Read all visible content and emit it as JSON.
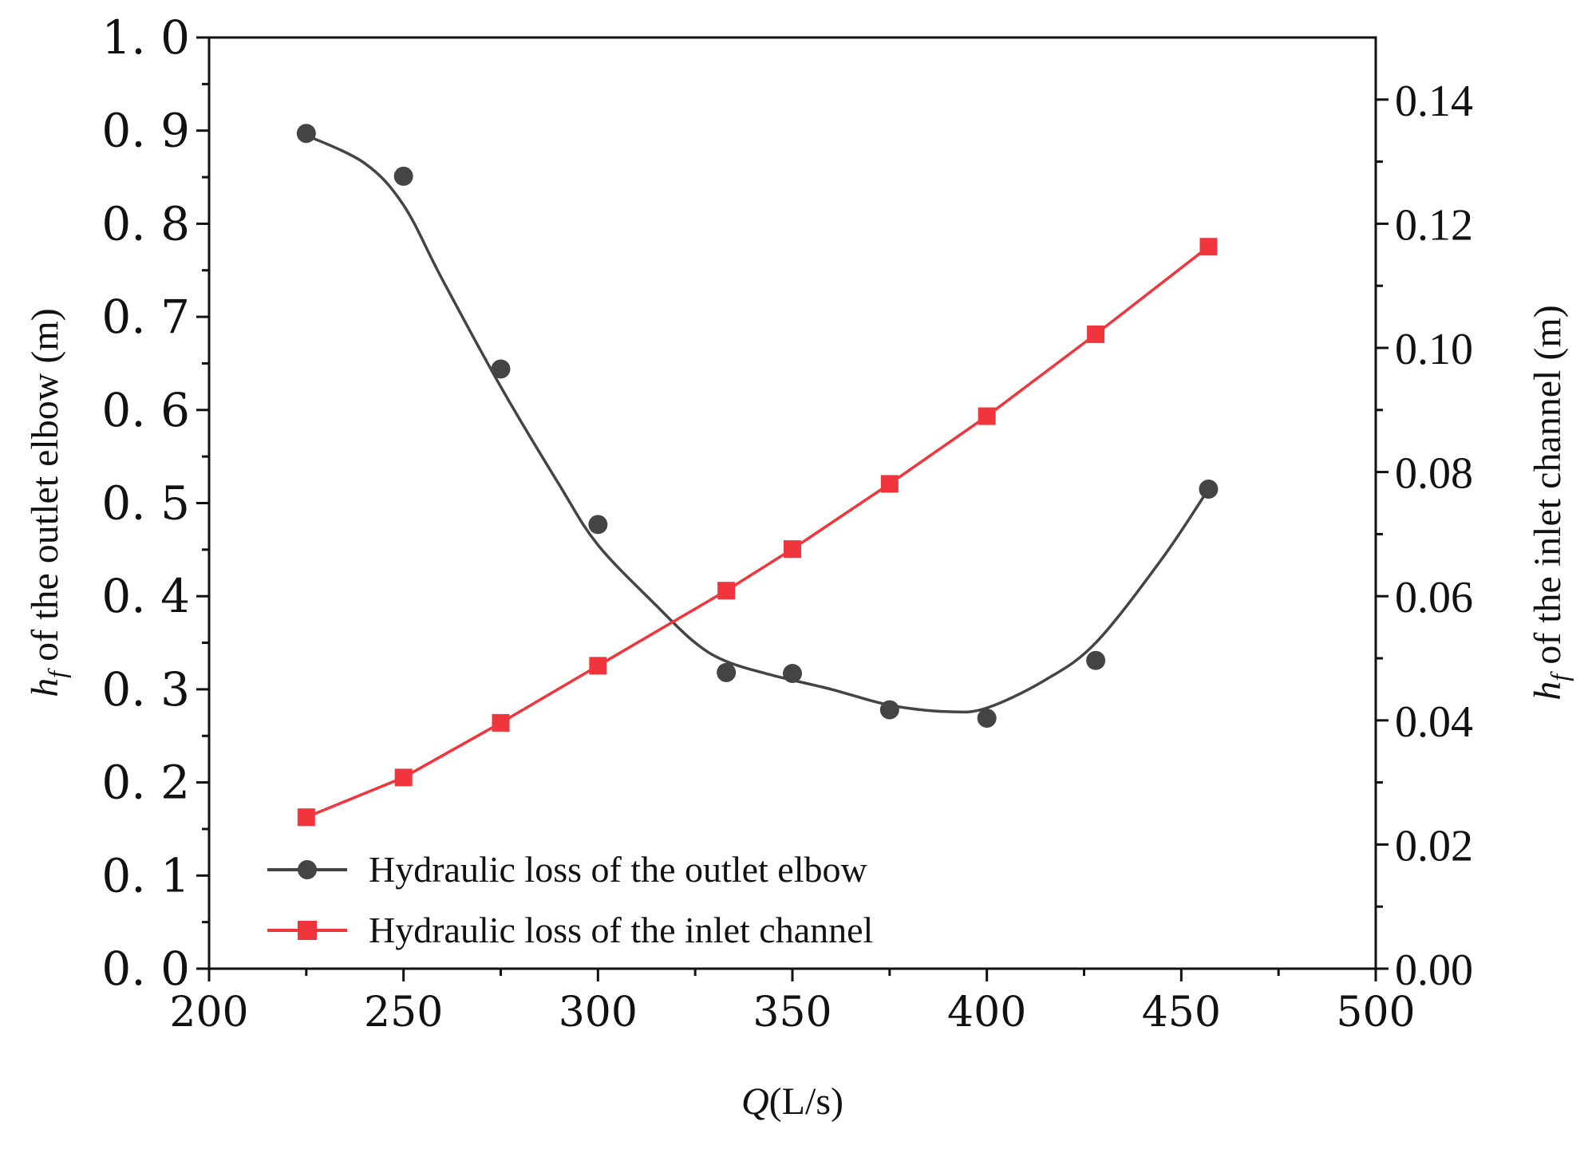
{
  "chart_data": {
    "type": "line",
    "xlabel": {
      "italic": "Q",
      "rest": "(L/s)"
    },
    "ylabel_left": {
      "italic": "h",
      "sub": "f",
      "rest": " of the outlet elbow (m)"
    },
    "ylabel_right": {
      "italic": "h",
      "sub": "f",
      "rest": " of the inlet channel (m)"
    },
    "xlim": [
      200,
      500
    ],
    "ylim_left": [
      0,
      1.0
    ],
    "ylim_right": [
      0,
      0.15
    ],
    "x_ticks": [
      "200",
      "250",
      "300",
      "350",
      "400",
      "450",
      "500"
    ],
    "y_ticks_left": [
      "0. 0",
      "0. 1",
      "0. 2",
      "0. 3",
      "0. 4",
      "0. 5",
      "0. 6",
      "0. 7",
      "0. 8",
      "0. 9",
      "1. 0"
    ],
    "y_ticks_right": [
      "0.00",
      "0.02",
      "0.04",
      "0.06",
      "0.08",
      "0.10",
      "0.12",
      "0.14"
    ],
    "legend_position": "bottom-left",
    "series": [
      {
        "name": "Hydraulic loss of the outlet elbow",
        "axis": "left",
        "color": "#444444",
        "marker": "circle",
        "line": "smooth-fit",
        "x": [
          225,
          250,
          275,
          300,
          333,
          350,
          375,
          400,
          428,
          457
        ],
        "y": [
          0.897,
          0.851,
          0.644,
          0.477,
          0.318,
          0.317,
          0.278,
          0.269,
          0.331,
          0.515
        ],
        "curve_x": [
          225,
          240,
          250,
          260,
          275,
          290,
          300,
          315,
          325,
          333,
          345,
          360,
          375,
          390,
          400,
          415,
          428,
          445,
          457
        ],
        "curve_y": [
          0.895,
          0.865,
          0.82,
          0.74,
          0.625,
          0.52,
          0.455,
          0.39,
          0.35,
          0.33,
          0.315,
          0.3,
          0.283,
          0.276,
          0.28,
          0.31,
          0.35,
          0.44,
          0.515
        ]
      },
      {
        "name": "Hydraulic loss of the inlet channel",
        "axis": "right",
        "color": "#f0363c",
        "marker": "square",
        "line": "straight",
        "x": [
          225,
          250,
          275,
          300,
          333,
          350,
          375,
          400,
          428,
          457
        ],
        "y": [
          0.0244,
          0.0308,
          0.0396,
          0.0488,
          0.0609,
          0.0676,
          0.0781,
          0.089,
          0.1022,
          0.1163
        ]
      }
    ]
  }
}
